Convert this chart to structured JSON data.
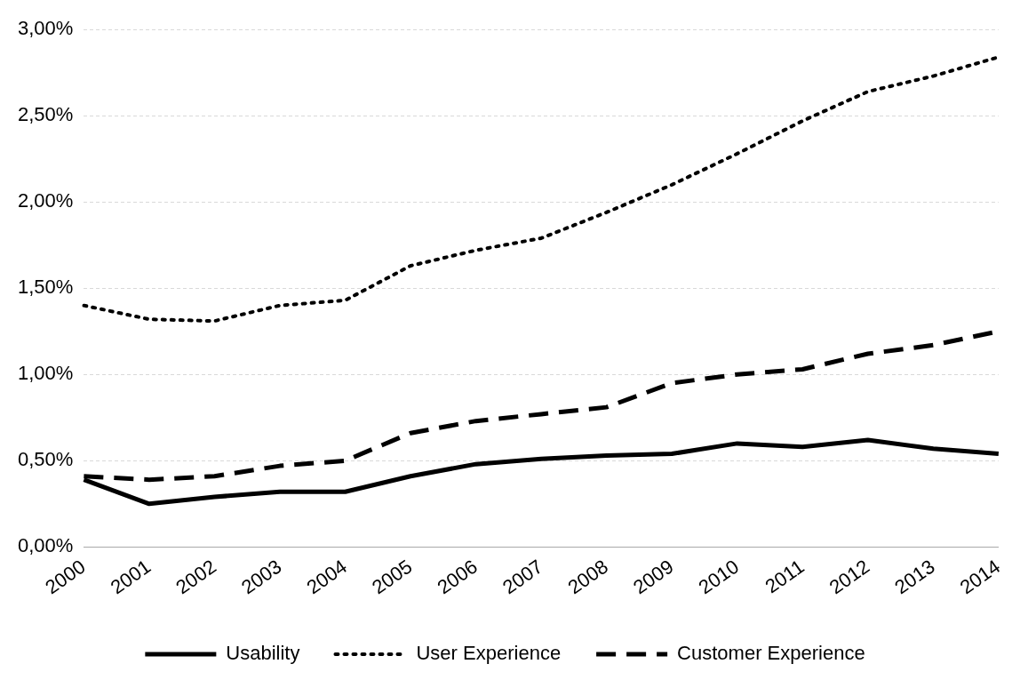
{
  "chart_data": {
    "type": "line",
    "categories": [
      "2000",
      "2001",
      "2002",
      "2003",
      "2004",
      "2005",
      "2006",
      "2007",
      "2008",
      "2009",
      "2010",
      "2011",
      "2012",
      "2013",
      "2014"
    ],
    "series": [
      {
        "name": "Usability",
        "color": "#000000",
        "line_style": "solid",
        "values": [
          0.39,
          0.25,
          0.29,
          0.32,
          0.32,
          0.41,
          0.48,
          0.51,
          0.53,
          0.54,
          0.6,
          0.58,
          0.62,
          0.57,
          0.54
        ]
      },
      {
        "name": "User Experience",
        "color": "#000000",
        "line_style": "dotted",
        "values": [
          1.4,
          1.32,
          1.31,
          1.4,
          1.43,
          1.63,
          1.72,
          1.79,
          1.94,
          2.1,
          2.28,
          2.47,
          2.64,
          2.73,
          2.84
        ]
      },
      {
        "name": "Customer Experience",
        "color": "#000000",
        "line_style": "dashed",
        "values": [
          0.41,
          0.39,
          0.41,
          0.47,
          0.5,
          0.66,
          0.73,
          0.77,
          0.81,
          0.95,
          1.0,
          1.03,
          1.12,
          1.17,
          1.25
        ]
      }
    ],
    "ylim": [
      0,
      3
    ],
    "yticks": [
      {
        "value": 0,
        "label": "0,00%"
      },
      {
        "value": 0.5,
        "label": "0,50%"
      },
      {
        "value": 1,
        "label": "1,00%"
      },
      {
        "value": 1.5,
        "label": "1,50%"
      },
      {
        "value": 2,
        "label": "2,00%"
      },
      {
        "value": 2.5,
        "label": "2,50%"
      },
      {
        "value": 3,
        "label": "3,00%"
      }
    ],
    "grid": "y",
    "legend": "bottom",
    "marker": "none"
  }
}
